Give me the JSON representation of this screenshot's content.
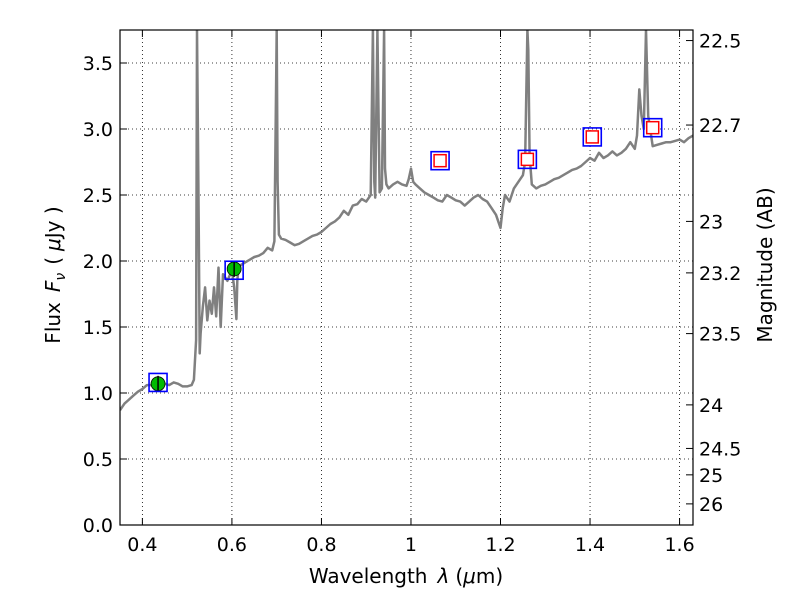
{
  "chart_data": {
    "type": "line",
    "xlabel_text": "Wavelength",
    "xlabel_symbol": "λ",
    "xlabel_unit_open": "(",
    "xlabel_unit_mu": "μ",
    "xlabel_unit_rest": "m)",
    "ylabel_text": "Flux",
    "ylabel_symbol": "F",
    "ylabel_symbol_sub": "ν",
    "ylabel_unit_open": "(",
    "ylabel_unit_mu": "μ",
    "ylabel_unit_rest": "Jy )",
    "y2label": "Magnitude (AB)",
    "xlim": [
      0.35,
      1.63
    ],
    "ylim": [
      0.0,
      3.75
    ],
    "grid": true,
    "x_ticks": [
      0.4,
      0.6,
      0.8,
      1.0,
      1.2,
      1.4,
      1.6
    ],
    "x_tick_labels": [
      "0.4",
      "0.6",
      "0.8",
      "1",
      "1.2",
      "1.4",
      "1.6"
    ],
    "y_ticks": [
      0.0,
      0.5,
      1.0,
      1.5,
      2.0,
      2.5,
      3.0,
      3.5
    ],
    "y_tick_labels": [
      "0.0",
      "0.5",
      "1.0",
      "1.5",
      "2.0",
      "2.5",
      "3.0",
      "3.5"
    ],
    "y2_ticks": [
      {
        "label": "22.5",
        "flux": 3.67
      },
      {
        "label": "22.7",
        "flux": 3.03
      },
      {
        "label": "23",
        "flux": 2.3
      },
      {
        "label": "23.2",
        "flux": 1.91
      },
      {
        "label": "23.5",
        "flux": 1.45
      },
      {
        "label": "24",
        "flux": 0.91
      },
      {
        "label": "24.5",
        "flux": 0.58
      },
      {
        "label": "25",
        "flux": 0.38
      },
      {
        "label": "26",
        "flux": 0.16
      }
    ],
    "series": [
      {
        "color": "#808080",
        "x": [
          0.35,
          0.36,
          0.37,
          0.38,
          0.39,
          0.4,
          0.41,
          0.42,
          0.43,
          0.44,
          0.45,
          0.46,
          0.47,
          0.48,
          0.49,
          0.5,
          0.51,
          0.515,
          0.52,
          0.522,
          0.524,
          0.526,
          0.528,
          0.53,
          0.535,
          0.54,
          0.545,
          0.55,
          0.555,
          0.56,
          0.565,
          0.57,
          0.575,
          0.58,
          0.59,
          0.6,
          0.605,
          0.61,
          0.612,
          0.615,
          0.62,
          0.63,
          0.64,
          0.65,
          0.66,
          0.67,
          0.68,
          0.69,
          0.695,
          0.7,
          0.702,
          0.705,
          0.71,
          0.72,
          0.73,
          0.74,
          0.75,
          0.76,
          0.77,
          0.78,
          0.79,
          0.8,
          0.81,
          0.82,
          0.83,
          0.84,
          0.85,
          0.86,
          0.87,
          0.88,
          0.89,
          0.9,
          0.91,
          0.915,
          0.918,
          0.92,
          0.925,
          0.93,
          0.935,
          0.94,
          0.942,
          0.945,
          0.95,
          0.96,
          0.97,
          0.98,
          0.99,
          0.995,
          1.0,
          1.005,
          1.01,
          1.02,
          1.03,
          1.04,
          1.05,
          1.06,
          1.07,
          1.08,
          1.09,
          1.1,
          1.11,
          1.12,
          1.13,
          1.14,
          1.15,
          1.16,
          1.17,
          1.18,
          1.19,
          1.2,
          1.205,
          1.21,
          1.22,
          1.23,
          1.24,
          1.25,
          1.255,
          1.26,
          1.262,
          1.265,
          1.27,
          1.28,
          1.29,
          1.3,
          1.31,
          1.32,
          1.33,
          1.34,
          1.35,
          1.36,
          1.37,
          1.38,
          1.39,
          1.4,
          1.41,
          1.42,
          1.43,
          1.44,
          1.45,
          1.46,
          1.47,
          1.48,
          1.49,
          1.5,
          1.505,
          1.51,
          1.515,
          1.52,
          1.525,
          1.53,
          1.54,
          1.55,
          1.56,
          1.57,
          1.58,
          1.59,
          1.6,
          1.61,
          1.62,
          1.63
        ],
        "y": [
          0.87,
          0.92,
          0.95,
          0.98,
          1.01,
          1.03,
          1.06,
          1.06,
          1.08,
          1.09,
          1.07,
          1.06,
          1.08,
          1.07,
          1.05,
          1.05,
          1.06,
          1.1,
          1.4,
          3.75,
          3.0,
          2.2,
          1.3,
          1.45,
          1.65,
          1.8,
          1.55,
          1.7,
          1.6,
          1.8,
          1.58,
          1.95,
          1.5,
          1.9,
          1.85,
          1.93,
          1.8,
          1.56,
          1.85,
          1.95,
          1.97,
          1.99,
          2.01,
          2.03,
          2.04,
          2.06,
          2.1,
          2.08,
          2.15,
          3.75,
          2.6,
          2.2,
          2.17,
          2.16,
          2.14,
          2.12,
          2.13,
          2.15,
          2.17,
          2.19,
          2.2,
          2.22,
          2.25,
          2.28,
          2.3,
          2.33,
          2.38,
          2.35,
          2.42,
          2.43,
          2.47,
          2.45,
          2.5,
          3.75,
          2.6,
          2.48,
          3.75,
          2.52,
          2.55,
          3.75,
          2.7,
          2.58,
          2.55,
          2.58,
          2.6,
          2.58,
          2.57,
          2.62,
          2.7,
          2.6,
          2.58,
          2.55,
          2.52,
          2.5,
          2.48,
          2.46,
          2.45,
          2.5,
          2.48,
          2.46,
          2.45,
          2.42,
          2.45,
          2.48,
          2.5,
          2.47,
          2.45,
          2.4,
          2.35,
          2.25,
          2.4,
          2.5,
          2.45,
          2.55,
          2.6,
          2.65,
          2.75,
          3.75,
          3.6,
          2.8,
          2.58,
          2.55,
          2.57,
          2.58,
          2.6,
          2.62,
          2.63,
          2.65,
          2.67,
          2.69,
          2.7,
          2.72,
          2.75,
          2.78,
          2.76,
          2.82,
          2.78,
          2.8,
          2.83,
          2.8,
          2.82,
          2.85,
          2.9,
          2.85,
          2.95,
          3.3,
          3.1,
          3.0,
          3.75,
          3.1,
          2.87,
          2.88,
          2.89,
          2.9,
          2.9,
          2.91,
          2.92,
          2.9,
          2.93,
          2.95
        ]
      }
    ],
    "markers_squares_blue": [
      {
        "x": 0.435,
        "y": 1.08
      },
      {
        "x": 0.605,
        "y": 1.93
      },
      {
        "x": 1.065,
        "y": 2.76
      },
      {
        "x": 1.26,
        "y": 2.77
      },
      {
        "x": 1.405,
        "y": 2.94
      },
      {
        "x": 1.54,
        "y": 3.01
      }
    ],
    "markers_squares_red": [
      {
        "x": 1.065,
        "y": 2.76
      },
      {
        "x": 1.26,
        "y": 2.77
      },
      {
        "x": 1.405,
        "y": 2.94
      },
      {
        "x": 1.54,
        "y": 3.01
      }
    ],
    "markers_circles_green": [
      {
        "x": 0.435,
        "y": 1.07,
        "err": 0.06
      },
      {
        "x": 0.605,
        "y": 1.94,
        "err": 0.06
      }
    ],
    "colors": {
      "line": "#808080",
      "square_outer": "#0000ff",
      "square_inner": "#ff0000",
      "circle": "#00bb00",
      "grid": "#000000"
    }
  }
}
